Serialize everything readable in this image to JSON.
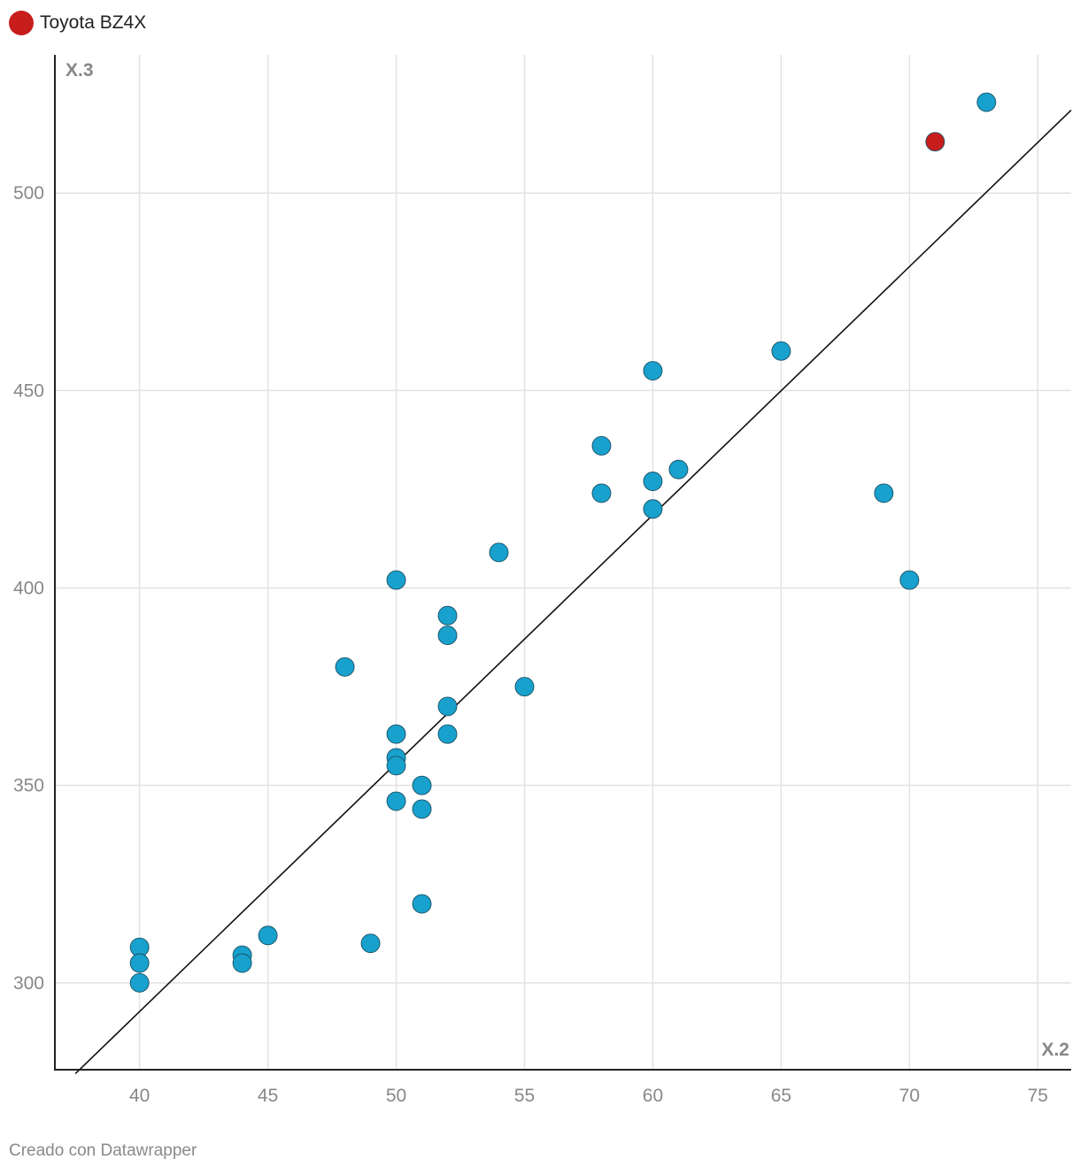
{
  "legend": {
    "label": "Toyota BZ4X",
    "color": "#c71e1d"
  },
  "credit": "Creado con Datawrapper",
  "colors": {
    "point": "#18a1cd",
    "highlight": "#c71e1d",
    "grid": "#e2e2e2",
    "axis": "#222222",
    "trend": "#111111"
  },
  "chart_data": {
    "type": "scatter",
    "xlabel": "X.2",
    "ylabel": "X.3",
    "xlim": [
      36.7,
      76.3
    ],
    "ylim": [
      278,
      535
    ],
    "x_ticks": [
      40,
      45,
      50,
      55,
      60,
      65,
      70,
      75
    ],
    "y_ticks": [
      300,
      350,
      400,
      450,
      500
    ],
    "grid": true,
    "legend_position": "top-left",
    "trend_line": {
      "x": [
        37.5,
        76.3
      ],
      "y": [
        277,
        521
      ]
    },
    "series": [
      {
        "name": "",
        "points": [
          {
            "x": 40,
            "y": 309
          },
          {
            "x": 40,
            "y": 305
          },
          {
            "x": 40,
            "y": 300
          },
          {
            "x": 44,
            "y": 307
          },
          {
            "x": 44,
            "y": 305
          },
          {
            "x": 45,
            "y": 312
          },
          {
            "x": 48,
            "y": 380
          },
          {
            "x": 49,
            "y": 310
          },
          {
            "x": 50,
            "y": 402
          },
          {
            "x": 50,
            "y": 363
          },
          {
            "x": 50,
            "y": 357
          },
          {
            "x": 50,
            "y": 355
          },
          {
            "x": 50,
            "y": 346
          },
          {
            "x": 51,
            "y": 350
          },
          {
            "x": 51,
            "y": 344
          },
          {
            "x": 51,
            "y": 320
          },
          {
            "x": 52,
            "y": 393
          },
          {
            "x": 52,
            "y": 388
          },
          {
            "x": 52,
            "y": 370
          },
          {
            "x": 52,
            "y": 363
          },
          {
            "x": 54,
            "y": 409
          },
          {
            "x": 55,
            "y": 375
          },
          {
            "x": 58,
            "y": 436
          },
          {
            "x": 58,
            "y": 424
          },
          {
            "x": 60,
            "y": 455
          },
          {
            "x": 60,
            "y": 427
          },
          {
            "x": 60,
            "y": 420
          },
          {
            "x": 61,
            "y": 430
          },
          {
            "x": 65,
            "y": 460
          },
          {
            "x": 69,
            "y": 424
          },
          {
            "x": 70,
            "y": 402
          },
          {
            "x": 73,
            "y": 523
          }
        ]
      },
      {
        "name": "Toyota BZ4X",
        "highlight": true,
        "points": [
          {
            "x": 71,
            "y": 513
          }
        ]
      }
    ]
  }
}
